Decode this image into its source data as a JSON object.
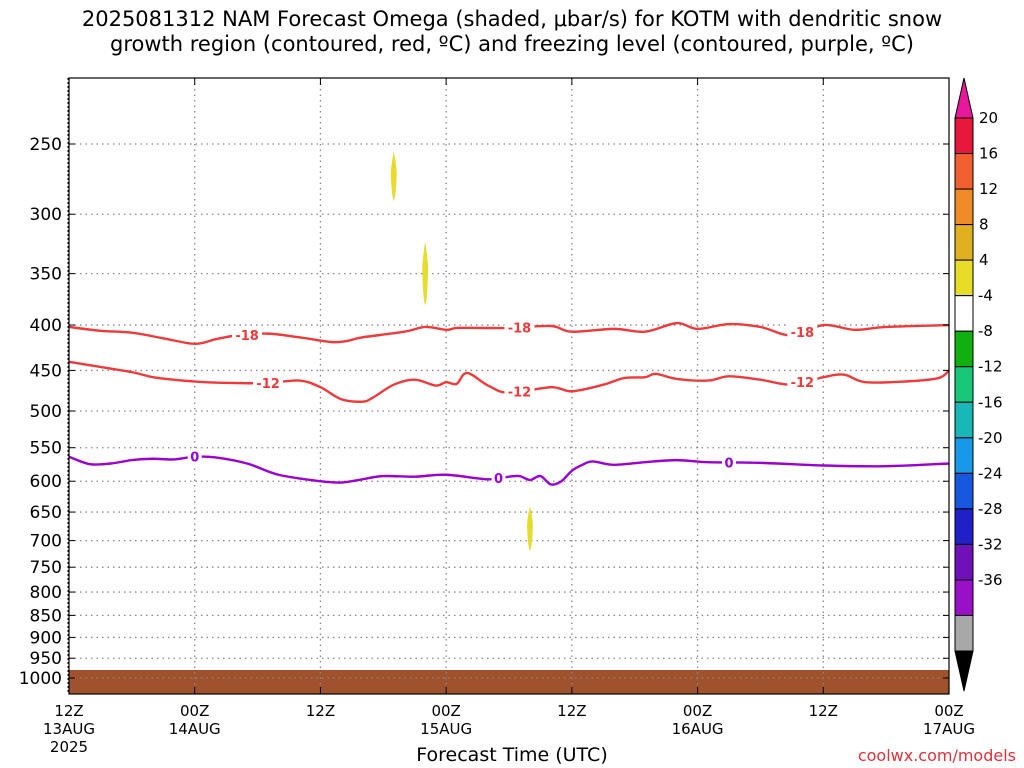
{
  "title": {
    "line1": "2025081312 NAM Forecast Omega (shaded, μbar/s) for KOTM with dendritic snow",
    "line2": "growth region (contoured, red, ºC) and freezing level (contoured, purple, ºC)"
  },
  "xaxis_title": "Forecast Time (UTC)",
  "credit": "coolwx.com/models",
  "colors": {
    "red_contour": "#ee3a3a",
    "purple_contour": "#9a00d0",
    "ground": "#a0522d",
    "omega_shade": "#e6dc2a",
    "grid": "#888888"
  },
  "chart_data": {
    "type": "contour",
    "y_axis": {
      "label": "",
      "scale": "log",
      "inverted": true,
      "ticks": [
        250,
        300,
        350,
        400,
        450,
        500,
        550,
        600,
        650,
        700,
        750,
        800,
        850,
        900,
        950,
        1000
      ],
      "range": [
        200,
        1030
      ]
    },
    "x_axis": {
      "label": "Forecast Time (UTC)",
      "range_hours": [
        0,
        84
      ],
      "ticks": [
        {
          "hour": 0,
          "l1": "12Z",
          "l2": "13AUG",
          "l3": "2025"
        },
        {
          "hour": 12,
          "l1": "00Z",
          "l2": "14AUG",
          "l3": ""
        },
        {
          "hour": 24,
          "l1": "12Z",
          "l2": "",
          "l3": ""
        },
        {
          "hour": 36,
          "l1": "00Z",
          "l2": "15AUG",
          "l3": ""
        },
        {
          "hour": 48,
          "l1": "12Z",
          "l2": "",
          "l3": ""
        },
        {
          "hour": 60,
          "l1": "00Z",
          "l2": "16AUG",
          "l3": ""
        },
        {
          "hour": 72,
          "l1": "12Z",
          "l2": "",
          "l3": ""
        },
        {
          "hour": 84,
          "l1": "00Z",
          "l2": "17AUG",
          "l3": ""
        }
      ],
      "grid_hours": [
        12,
        24,
        36,
        48,
        60,
        72
      ]
    },
    "contours": [
      {
        "name": "-18",
        "color": "red",
        "points": [
          [
            0,
            402
          ],
          [
            3,
            406
          ],
          [
            6,
            408
          ],
          [
            9,
            414
          ],
          [
            12,
            420
          ],
          [
            14,
            415
          ],
          [
            16,
            411
          ],
          [
            19,
            409
          ],
          [
            22,
            413
          ],
          [
            25,
            418
          ],
          [
            26.5,
            417
          ],
          [
            28,
            413
          ],
          [
            32,
            407
          ],
          [
            34,
            402
          ],
          [
            36,
            405
          ],
          [
            37,
            403
          ],
          [
            39,
            403
          ],
          [
            42,
            403
          ],
          [
            46,
            401
          ],
          [
            48,
            407
          ],
          [
            52,
            404
          ],
          [
            55,
            407
          ],
          [
            58,
            398
          ],
          [
            60,
            404
          ],
          [
            63,
            399
          ],
          [
            66,
            402
          ],
          [
            69,
            411
          ],
          [
            72,
            400
          ],
          [
            75,
            405
          ],
          [
            78,
            402
          ],
          [
            84,
            400
          ]
        ],
        "labels": [
          {
            "hour": 17,
            "text": "-18"
          },
          {
            "hour": 43,
            "text": "-18"
          },
          {
            "hour": 70,
            "text": "-18"
          }
        ]
      },
      {
        "name": "-12",
        "color": "red",
        "points": [
          [
            0,
            440
          ],
          [
            3,
            446
          ],
          [
            6,
            452
          ],
          [
            8,
            458
          ],
          [
            10,
            461
          ],
          [
            13,
            464
          ],
          [
            16,
            465
          ],
          [
            19,
            465
          ],
          [
            22,
            462
          ],
          [
            24,
            470
          ],
          [
            26,
            485
          ],
          [
            28,
            488
          ],
          [
            29,
            483
          ],
          [
            31,
            467
          ],
          [
            33,
            461
          ],
          [
            35,
            468
          ],
          [
            36,
            464
          ],
          [
            37,
            466
          ],
          [
            38,
            453
          ],
          [
            40,
            468
          ],
          [
            42,
            477
          ],
          [
            46,
            470
          ],
          [
            48,
            475
          ],
          [
            51,
            467
          ],
          [
            53,
            459
          ],
          [
            55,
            458
          ],
          [
            56,
            454
          ],
          [
            58,
            460
          ],
          [
            61,
            462
          ],
          [
            63,
            457
          ],
          [
            66,
            461
          ],
          [
            69,
            467
          ],
          [
            72,
            458
          ],
          [
            74,
            455
          ],
          [
            76,
            464
          ],
          [
            80,
            463
          ],
          [
            83,
            459
          ],
          [
            84,
            450
          ]
        ],
        "labels": [
          {
            "hour": 19,
            "text": "-12"
          },
          {
            "hour": 43,
            "text": "-12"
          },
          {
            "hour": 70,
            "text": "-12"
          }
        ]
      },
      {
        "name": "0",
        "color": "purple",
        "points": [
          [
            0,
            563
          ],
          [
            2,
            574
          ],
          [
            4,
            573
          ],
          [
            6,
            568
          ],
          [
            8,
            566
          ],
          [
            10,
            567
          ],
          [
            12,
            563
          ],
          [
            14,
            564
          ],
          [
            17,
            573
          ],
          [
            20,
            590
          ],
          [
            24,
            600
          ],
          [
            26,
            602
          ],
          [
            28,
            597
          ],
          [
            30,
            592
          ],
          [
            33,
            593
          ],
          [
            36,
            590
          ],
          [
            40,
            597
          ],
          [
            42,
            593
          ],
          [
            43,
            592
          ],
          [
            44,
            598
          ],
          [
            45,
            592
          ],
          [
            46,
            605
          ],
          [
            47,
            600
          ],
          [
            48,
            584
          ],
          [
            49,
            575
          ],
          [
            50,
            570
          ],
          [
            52,
            575
          ],
          [
            55,
            571
          ],
          [
            58,
            568
          ],
          [
            61,
            571
          ],
          [
            66,
            572
          ],
          [
            72,
            576
          ],
          [
            78,
            577
          ],
          [
            84,
            573
          ]
        ],
        "labels": [
          {
            "hour": 12,
            "text": "0"
          },
          {
            "hour": 41,
            "text": "0"
          },
          {
            "hour": 63,
            "text": "0"
          }
        ]
      }
    ],
    "omega_shading": [
      {
        "value": "4 to 8",
        "hour": 31,
        "p_top": 255,
        "p_bottom": 290
      },
      {
        "value": "4 to 8",
        "hour": 34,
        "p_top": 322,
        "p_bottom": 380
      },
      {
        "value": "4 to 8",
        "hour": 44,
        "p_top": 640,
        "p_bottom": 720
      }
    ],
    "colorbar": {
      "labels": [
        "20",
        "16",
        "12",
        "8",
        "4",
        "-4",
        "-8",
        "-12",
        "-16",
        "-20",
        "-24",
        "-28",
        "-32",
        "-36"
      ],
      "colors": [
        "#e8183c",
        "#f06030",
        "#f08c28",
        "#e0b020",
        "#e8dc28",
        "#ffffff",
        "#10b010",
        "#18c878",
        "#18b8b8",
        "#1898e8",
        "#1858e0",
        "#2020c8",
        "#7010b8",
        "#9810c8",
        "#a8a8a8"
      ],
      "top_color": "#e8189c",
      "bottom_color": "#000000"
    }
  }
}
